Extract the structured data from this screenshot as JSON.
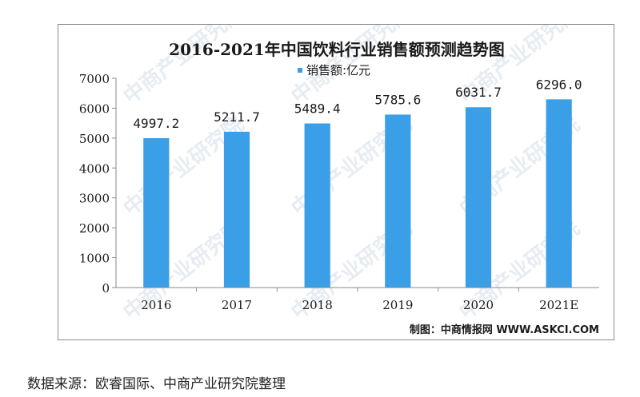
{
  "chart_data": {
    "type": "bar",
    "title": "2016-2021年中国饮料行业销售额预测趋势图",
    "legend_label": "销售额:亿元",
    "legend_position": "top-center",
    "categories": [
      "2016",
      "2017",
      "2018",
      "2019",
      "2020",
      "2021E"
    ],
    "series": [
      {
        "name": "销售额:亿元",
        "values": [
          4997.2,
          5211.7,
          5489.4,
          5785.6,
          6031.7,
          6296.0
        ],
        "labels": [
          "4997.2",
          "5211.7",
          "5489.4",
          "5785.6",
          "6031.7",
          "6296.0"
        ]
      }
    ],
    "ylim": [
      0,
      7000
    ],
    "yticks": [
      0,
      1000,
      2000,
      3000,
      4000,
      5000,
      6000,
      7000
    ],
    "ytick_labels": [
      "0",
      "1000",
      "2000",
      "3000",
      "4000",
      "5000",
      "6000",
      "7000"
    ],
    "grid": false,
    "bar_color": "#3a9fe6",
    "credit": "制图：中商情报网 WWW.ASKCI.COM"
  },
  "watermark_text": "中商产业研究院",
  "source_note": "数据来源：欧睿国际、中商产业研究院整理"
}
